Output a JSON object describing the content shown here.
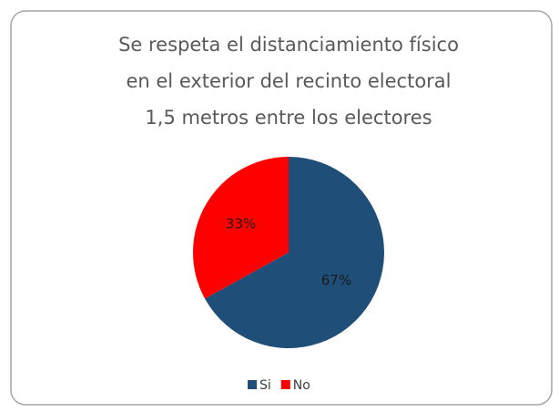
{
  "chart_data": {
    "type": "pie",
    "title": [
      "Se respeta el distanciamiento físico",
      "en el exterior del recinto electoral",
      "1,5 metros entre los electores"
    ],
    "categories": [
      "Si",
      "No"
    ],
    "values": [
      67,
      33
    ],
    "value_labels": [
      "67%",
      "33%"
    ],
    "colors": [
      "#1f4e79",
      "#ff0000"
    ],
    "legend": "bottom"
  }
}
